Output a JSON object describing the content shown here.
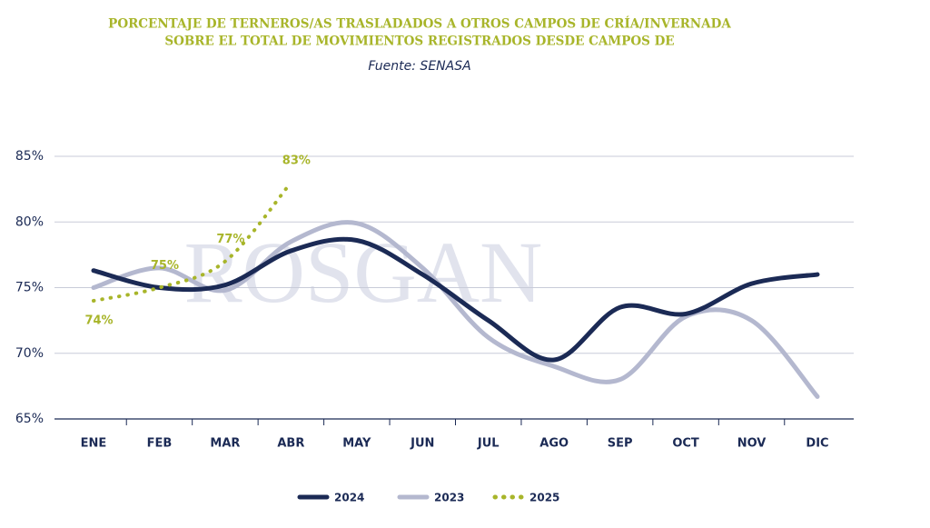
{
  "chart_data": {
    "type": "line",
    "title": [
      "PORCENTAJE DE TERNEROS/AS TRASLADADOS A OTROS CAMPOS DE CRÍA/INVERNADA",
      "SOBRE EL TOTAL DE MOVIMIENTOS REGISTRADOS DESDE CAMPOS DE"
    ],
    "subtitle": "Fuente: SENASA",
    "watermark": "ROSGAN",
    "categories": [
      "ENE",
      "FEB",
      "MAR",
      "ABR",
      "MAY",
      "JUN",
      "JUL",
      "AGO",
      "SEP",
      "OCT",
      "NOV",
      "DIC"
    ],
    "series": [
      {
        "name": "2024",
        "color": "#1b2a55",
        "style": "solid",
        "values": [
          76.3,
          75,
          75.2,
          77.8,
          78.6,
          76,
          72.5,
          69.5,
          73.5,
          73,
          75.3,
          76
        ]
      },
      {
        "name": "2023",
        "color": "#b4b8cf",
        "style": "solid",
        "values": [
          75,
          76.5,
          74.8,
          78.5,
          79.9,
          76.5,
          71.2,
          69,
          68,
          72.8,
          72.5,
          66.7
        ]
      },
      {
        "name": "2025",
        "color": "#a8b52a",
        "style": "dotted",
        "values": [
          74,
          75,
          77,
          83,
          null,
          null,
          null,
          null,
          null,
          null,
          null,
          null
        ],
        "value_labels": [
          "74%",
          "75%",
          "77%",
          "83%",
          null,
          null,
          null,
          null,
          null,
          null,
          null,
          null
        ]
      }
    ],
    "ylim": [
      65,
      85
    ],
    "yticks": [
      {
        "value": 65,
        "label": "65%"
      },
      {
        "value": 70,
        "label": "70%"
      },
      {
        "value": 75,
        "label": "75%"
      },
      {
        "value": 80,
        "label": "80%"
      },
      {
        "value": 85,
        "label": "85%"
      }
    ],
    "grid": true,
    "legend": "bottom"
  }
}
